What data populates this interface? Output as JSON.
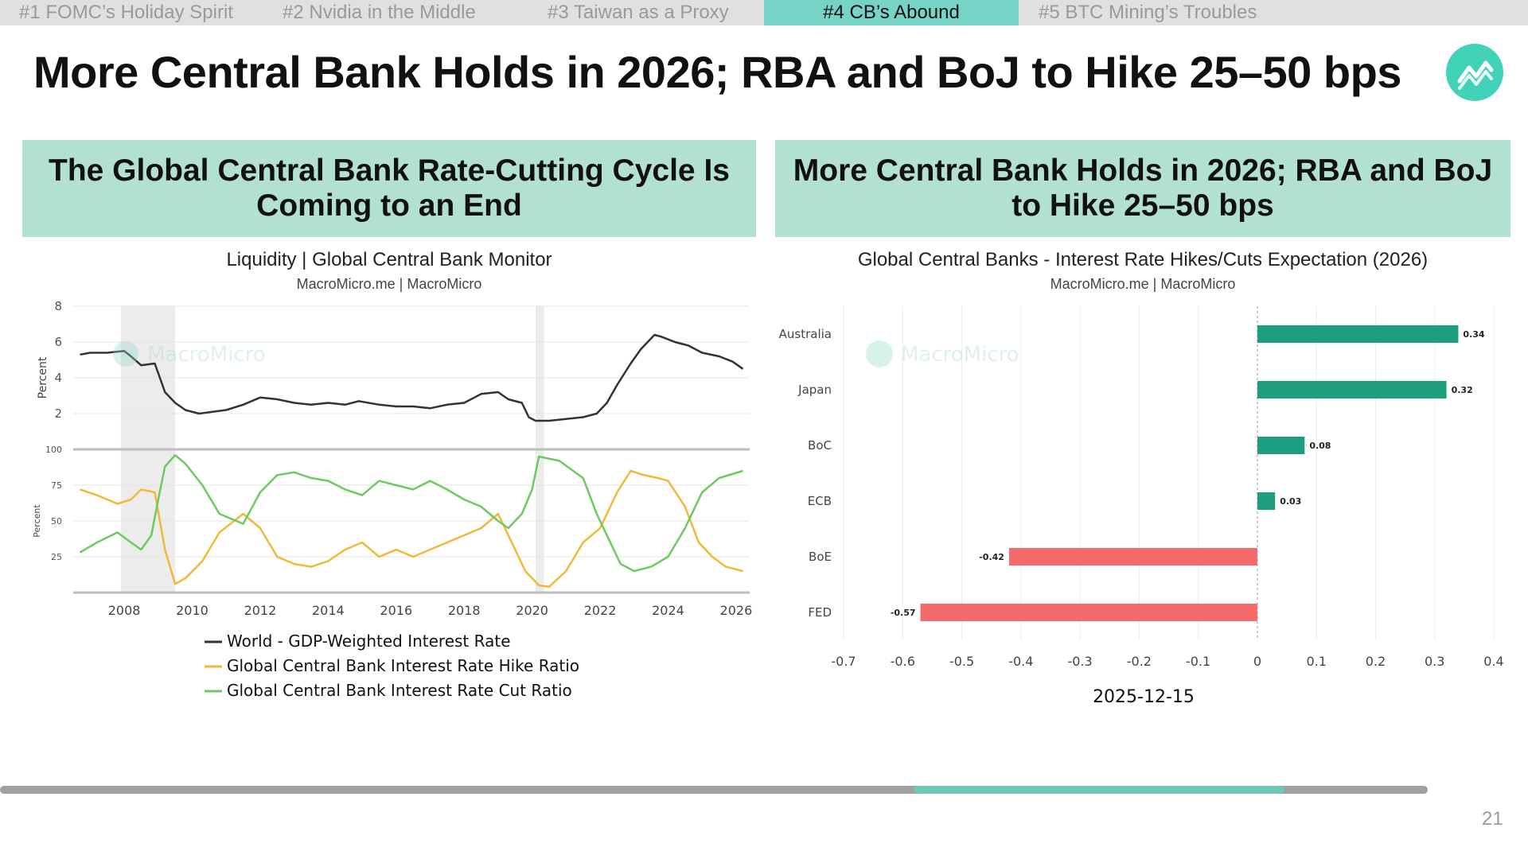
{
  "tabs": [
    {
      "label": "#1 FOMC’s Holiday Spirit",
      "active": false
    },
    {
      "label": "#2 Nvidia in the Middle",
      "active": false
    },
    {
      "label": "#3 Taiwan as a Proxy",
      "active": false
    },
    {
      "label": "#4 CB’s Abound",
      "active": true
    },
    {
      "label": "#5 BTC Mining’s Troubles",
      "active": false
    }
  ],
  "page_title": "More Central Bank Holds in 2026; RBA and BoJ to Hike 25–50 bps",
  "left_panel": {
    "heading": "The Global Central Bank Rate-Cutting Cycle Is Coming to an End",
    "chart_title": "Liquidity | Global Central Bank Monitor",
    "chart_source": "MacroMicro.me | MacroMicro",
    "watermark": "MacroMicro"
  },
  "right_panel": {
    "heading": "More Central Bank Holds in 2026; RBA and BoJ to Hike 25–50 bps",
    "chart_title": "Global Central Banks - Interest Rate Hikes/Cuts Expectation (2026)",
    "chart_source": "MacroMicro.me | MacroMicro",
    "watermark": "MacroMicro"
  },
  "colors": {
    "accent": "#77d3c6",
    "panel_head": "#b2e0d2",
    "world_rate": "#333333",
    "hike_ratio": "#f0b93a",
    "cut_ratio": "#6ccb5f",
    "positive_bar": "#1e9e7e",
    "negative_bar": "#f56b6b"
  },
  "chart_data": [
    {
      "type": "line",
      "title": "Liquidity | Global Central Bank Monitor",
      "subtitle": "MacroMicro.me | MacroMicro",
      "x_tick_labels": [
        "2008",
        "2010",
        "2012",
        "2014",
        "2016",
        "2018",
        "2020",
        "2022",
        "2024",
        "2026"
      ],
      "top_panel": {
        "ylabel": "Percent",
        "ylim": [
          0,
          8
        ],
        "y_ticks": [
          "2",
          "4",
          "6",
          "8"
        ],
        "series": [
          {
            "name": "World - GDP-Weighted Interest Rate",
            "x": [
              2006.7,
              2007.0,
              2007.5,
              2008.0,
              2008.2,
              2008.5,
              2008.9,
              2009.2,
              2009.5,
              2009.8,
              2010.2,
              2010.6,
              2011.0,
              2011.5,
              2012.0,
              2012.5,
              2013.0,
              2013.5,
              2014.0,
              2014.5,
              2014.9,
              2015.5,
              2016.0,
              2016.5,
              2017.0,
              2017.5,
              2018.0,
              2018.5,
              2019.0,
              2019.3,
              2019.7,
              2019.9,
              2020.1,
              2020.5,
              2021.0,
              2021.5,
              2021.9,
              2022.2,
              2022.5,
              2022.9,
              2023.2,
              2023.6,
              2023.8,
              2024.2,
              2024.6,
              2025.0,
              2025.5,
              2025.9,
              2026.2
            ],
            "y": [
              5.3,
              5.4,
              5.4,
              5.5,
              5.2,
              4.7,
              4.8,
              3.2,
              2.6,
              2.2,
              2.0,
              2.1,
              2.2,
              2.5,
              2.9,
              2.8,
              2.6,
              2.5,
              2.6,
              2.5,
              2.7,
              2.5,
              2.4,
              2.4,
              2.3,
              2.5,
              2.6,
              3.1,
              3.2,
              2.8,
              2.6,
              1.8,
              1.6,
              1.6,
              1.7,
              1.8,
              2.0,
              2.6,
              3.6,
              4.8,
              5.6,
              6.4,
              6.3,
              6.0,
              5.8,
              5.4,
              5.2,
              4.9,
              4.5
            ]
          }
        ]
      },
      "bottom_panel": {
        "ylabel": "Percent",
        "ylim": [
          0,
          100
        ],
        "y_ticks": [
          "25",
          "50",
          "75",
          "100"
        ],
        "series": [
          {
            "name": "Global Central Bank Interest Rate Hike Ratio",
            "x": [
              2006.7,
              2007.2,
              2007.8,
              2008.2,
              2008.5,
              2008.9,
              2009.2,
              2009.5,
              2009.8,
              2010.3,
              2010.8,
              2011.5,
              2012.0,
              2012.5,
              2013.0,
              2013.5,
              2014.0,
              2014.5,
              2015.0,
              2015.5,
              2016.0,
              2016.5,
              2017.0,
              2017.5,
              2018.0,
              2018.5,
              2019.0,
              2019.5,
              2019.8,
              2020.2,
              2020.5,
              2021.0,
              2021.5,
              2022.0,
              2022.5,
              2022.9,
              2023.3,
              2023.7,
              2024.0,
              2024.5,
              2024.9,
              2025.3,
              2025.7,
              2026.2
            ],
            "y": [
              72,
              68,
              62,
              65,
              72,
              70,
              30,
              6,
              10,
              22,
              42,
              55,
              45,
              25,
              20,
              18,
              22,
              30,
              35,
              25,
              30,
              25,
              30,
              35,
              40,
              45,
              55,
              30,
              15,
              5,
              4,
              15,
              35,
              45,
              70,
              85,
              82,
              80,
              78,
              60,
              35,
              25,
              18,
              15
            ]
          },
          {
            "name": "Global Central Bank Interest Rate Cut Ratio",
            "x": [
              2006.7,
              2007.2,
              2007.8,
              2008.2,
              2008.5,
              2008.8,
              2009.0,
              2009.2,
              2009.5,
              2009.8,
              2010.3,
              2010.8,
              2011.5,
              2012.0,
              2012.5,
              2013.0,
              2013.5,
              2014.0,
              2014.5,
              2015.0,
              2015.5,
              2016.0,
              2016.5,
              2017.0,
              2017.5,
              2018.0,
              2018.5,
              2019.0,
              2019.3,
              2019.7,
              2020.0,
              2020.2,
              2020.8,
              2021.5,
              2021.9,
              2022.3,
              2022.6,
              2023.0,
              2023.5,
              2024.0,
              2024.5,
              2025.0,
              2025.5,
              2026.2
            ],
            "y": [
              28,
              35,
              42,
              35,
              30,
              40,
              65,
              88,
              96,
              90,
              75,
              55,
              48,
              70,
              82,
              84,
              80,
              78,
              72,
              68,
              78,
              75,
              72,
              78,
              72,
              65,
              60,
              50,
              45,
              55,
              72,
              95,
              92,
              80,
              55,
              35,
              20,
              15,
              18,
              25,
              45,
              70,
              80,
              85
            ]
          }
        ]
      },
      "shaded_periods": [
        [
          2007.9,
          2009.5
        ],
        [
          2020.1,
          2020.35
        ]
      ],
      "legend_placement": "bottom",
      "grid": true
    },
    {
      "type": "bar",
      "orientation": "horizontal",
      "title": "Global Central Banks - Interest Rate Hikes/Cuts Expectation (2026)",
      "subtitle": "MacroMicro.me | MacroMicro",
      "xlabel": "2025-12-15",
      "categories": [
        "Australia",
        "Japan",
        "BoC",
        "ECB",
        "BoE",
        "FED"
      ],
      "values": [
        0.34,
        0.32,
        0.08,
        0.03,
        -0.42,
        -0.57
      ],
      "value_labels": [
        "0.34",
        "0.32",
        "0.08",
        "0.03",
        "-0.42",
        "-0.57"
      ],
      "xlim": [
        -0.7,
        0.4
      ],
      "x_ticks": [
        "-0.7",
        "-0.6",
        "-0.5",
        "-0.4",
        "-0.3",
        "-0.2",
        "-0.1",
        "0",
        "0.1",
        "0.2",
        "0.3",
        "0.4"
      ],
      "grid": true
    }
  ],
  "progress": {
    "fraction": 0.9,
    "highlight_start": 0.64
  },
  "page_number": "21"
}
